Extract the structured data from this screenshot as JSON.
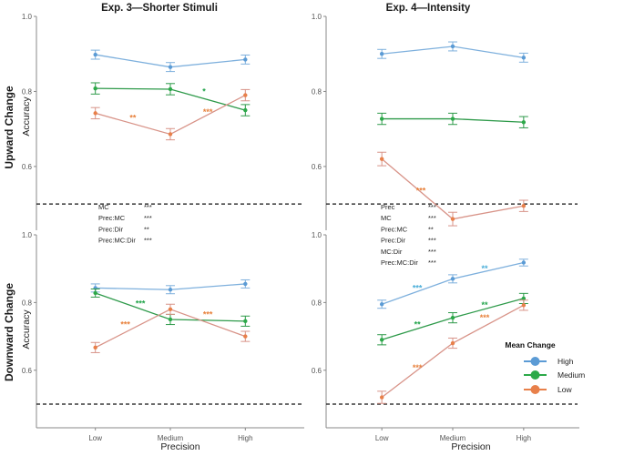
{
  "panel_titles": [
    "Exp. 3—Shorter Stimuli",
    "Exp. 4—Intensity"
  ],
  "row_labels": [
    "Upward Change",
    "Downward Change"
  ],
  "axis": {
    "ylabel": "Accuracy",
    "xlabel": "Precision"
  },
  "legend": {
    "title": "Mean Change",
    "items": [
      {
        "label": "High",
        "color": "#5b9bd5"
      },
      {
        "label": "Medium",
        "color": "#2ca949"
      },
      {
        "label": "Low",
        "color": "#e8804a"
      }
    ]
  },
  "colors": {
    "High": "#7eb0dd",
    "Medium": "#2e9a4a",
    "Low": "#d89388",
    "star_orange": "#e8823d",
    "star_blue": "#4aaed9",
    "star_green": "#22a44a"
  },
  "chart_data": [
    {
      "type": "line",
      "panel": "exp3-upward",
      "title": "Exp. 3—Shorter Stimuli",
      "row": "Upward Change",
      "xlabel": "Precision",
      "ylabel": "Accuracy",
      "categories": [
        "Low",
        "Medium",
        "High"
      ],
      "ylim": [
        0.43,
        1.0
      ],
      "yticks": [
        0.6,
        0.8,
        1.0
      ],
      "reference_line": 0.5,
      "series": [
        {
          "name": "High",
          "values": [
            0.898,
            0.865,
            0.885
          ],
          "errors": [
            0.012,
            0.012,
            0.012
          ]
        },
        {
          "name": "Medium",
          "values": [
            0.808,
            0.806,
            0.75
          ],
          "errors": [
            0.015,
            0.015,
            0.015
          ]
        },
        {
          "name": "Low",
          "values": [
            0.742,
            0.686,
            0.79
          ],
          "errors": [
            0.015,
            0.015,
            0.015
          ]
        }
      ],
      "annotations": [
        {
          "text": "**",
          "x": 0.5,
          "y": 0.73,
          "color": "star_orange"
        },
        {
          "text": "*",
          "x": 1.45,
          "y": 0.8,
          "color": "star_green"
        },
        {
          "text": "***",
          "x": 1.5,
          "y": 0.745,
          "color": "star_orange"
        }
      ],
      "stats": []
    },
    {
      "type": "line",
      "panel": "exp4-upward",
      "title": "Exp. 4—Intensity",
      "row": "Upward Change",
      "xlabel": "Precision",
      "ylabel": "Accuracy",
      "categories": [
        "Low",
        "Medium",
        "High"
      ],
      "ylim": [
        0.43,
        1.0
      ],
      "yticks": [
        0.6,
        0.8,
        1.0
      ],
      "reference_line": 0.5,
      "series": [
        {
          "name": "High",
          "values": [
            0.9,
            0.92,
            0.89
          ],
          "errors": [
            0.012,
            0.012,
            0.012
          ]
        },
        {
          "name": "Medium",
          "values": [
            0.727,
            0.727,
            0.718
          ],
          "errors": [
            0.015,
            0.015,
            0.015
          ]
        },
        {
          "name": "Low",
          "values": [
            0.62,
            0.46,
            0.495
          ],
          "errors": [
            0.018,
            0.018,
            0.015
          ]
        }
      ],
      "annotations": [
        {
          "text": "***",
          "x": 0.55,
          "y": 0.535,
          "color": "star_orange"
        }
      ],
      "stats": [
        {
          "term": "Prec",
          "sig": "***"
        },
        {
          "term": "MC",
          "sig": "***"
        },
        {
          "term": "Prec:MC",
          "sig": "**"
        },
        {
          "term": "Prec:Dir",
          "sig": "***"
        },
        {
          "term": "MC:Dir",
          "sig": "***"
        },
        {
          "term": "Prec:MC:Dir",
          "sig": "***"
        }
      ]
    },
    {
      "type": "line",
      "panel": "exp3-downward",
      "title": "Exp. 3—Shorter Stimuli",
      "row": "Downward Change",
      "xlabel": "Precision",
      "ylabel": "Accuracy",
      "categories": [
        "Low",
        "Medium",
        "High"
      ],
      "ylim": [
        0.43,
        1.0
      ],
      "yticks": [
        0.6,
        0.8,
        1.0
      ],
      "reference_line": 0.5,
      "series": [
        {
          "name": "High",
          "values": [
            0.843,
            0.838,
            0.855
          ],
          "errors": [
            0.012,
            0.012,
            0.012
          ]
        },
        {
          "name": "Medium",
          "values": [
            0.828,
            0.75,
            0.745
          ],
          "errors": [
            0.012,
            0.015,
            0.015
          ]
        },
        {
          "name": "Low",
          "values": [
            0.667,
            0.78,
            0.7
          ],
          "errors": [
            0.015,
            0.015,
            0.015
          ]
        }
      ],
      "annotations": [
        {
          "text": "***",
          "x": 0.6,
          "y": 0.797,
          "color": "star_green"
        },
        {
          "text": "***",
          "x": 0.4,
          "y": 0.735,
          "color": "star_orange"
        },
        {
          "text": "***",
          "x": 1.5,
          "y": 0.765,
          "color": "star_orange"
        }
      ],
      "stats": [
        {
          "term": "MC",
          "sig": "***"
        },
        {
          "term": "Prec:MC",
          "sig": "***"
        },
        {
          "term": "Prec:Dir",
          "sig": "**"
        },
        {
          "term": "Prec:MC:Dir",
          "sig": "***"
        }
      ]
    },
    {
      "type": "line",
      "panel": "exp4-downward",
      "title": "Exp. 4—Intensity",
      "row": "Downward Change",
      "xlabel": "Precision",
      "ylabel": "Accuracy",
      "categories": [
        "Low",
        "Medium",
        "High"
      ],
      "ylim": [
        0.43,
        1.0
      ],
      "yticks": [
        0.6,
        0.8,
        1.0
      ],
      "reference_line": 0.5,
      "series": [
        {
          "name": "High",
          "values": [
            0.795,
            0.87,
            0.918
          ],
          "errors": [
            0.012,
            0.012,
            0.01
          ]
        },
        {
          "name": "Medium",
          "values": [
            0.69,
            0.755,
            0.812
          ],
          "errors": [
            0.015,
            0.015,
            0.015
          ]
        },
        {
          "name": "Low",
          "values": [
            0.52,
            0.68,
            0.792
          ],
          "errors": [
            0.018,
            0.015,
            0.015
          ]
        }
      ],
      "annotations": [
        {
          "text": "***",
          "x": 0.5,
          "y": 0.843,
          "color": "star_blue"
        },
        {
          "text": "**",
          "x": 1.45,
          "y": 0.9,
          "color": "star_blue"
        },
        {
          "text": "**",
          "x": 0.5,
          "y": 0.735,
          "color": "star_green"
        },
        {
          "text": "**",
          "x": 1.45,
          "y": 0.793,
          "color": "star_green"
        },
        {
          "text": "***",
          "x": 1.45,
          "y": 0.755,
          "color": "star_orange"
        },
        {
          "text": "***",
          "x": 0.5,
          "y": 0.607,
          "color": "star_orange"
        }
      ],
      "stats": []
    }
  ]
}
